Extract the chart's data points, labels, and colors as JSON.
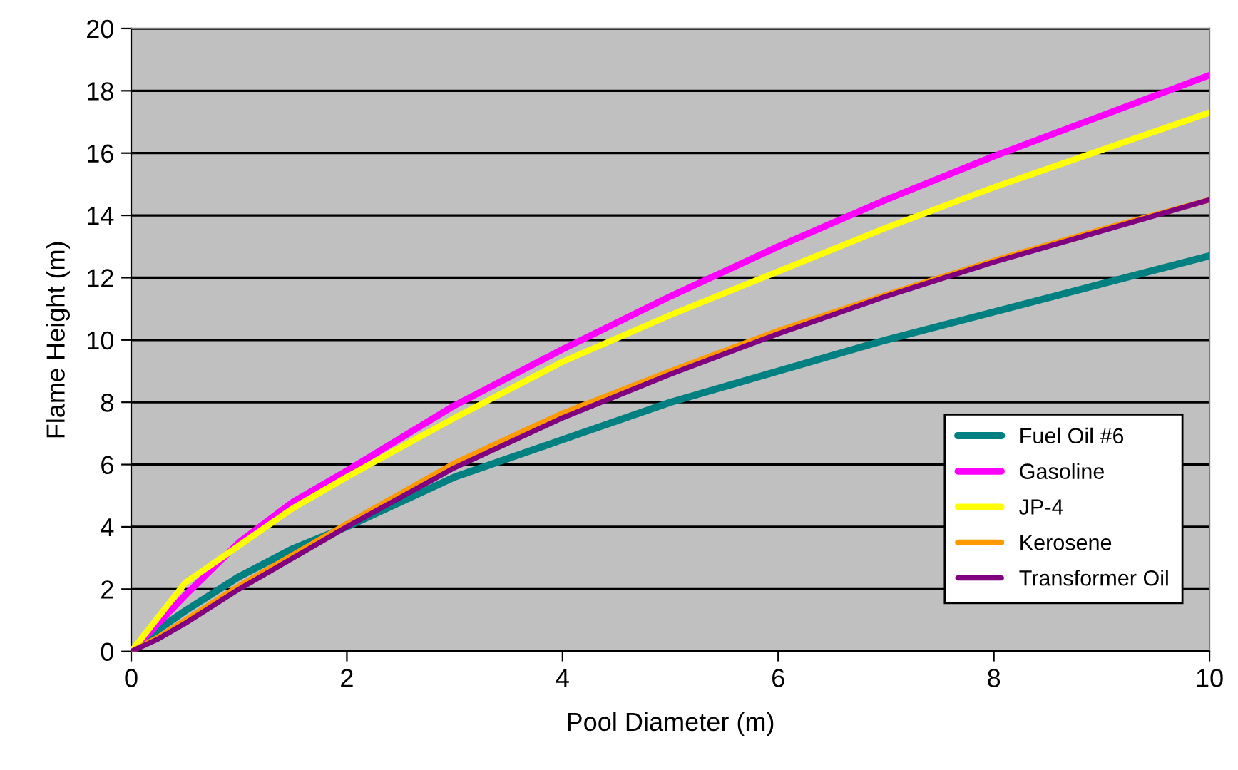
{
  "chart_data": {
    "type": "line",
    "xlabel": "Pool Diameter (m)",
    "ylabel": "Flame Height (m)",
    "xlim": [
      0,
      10
    ],
    "xticks": [
      0,
      2,
      4,
      6,
      8,
      10
    ],
    "ylim": [
      0,
      20
    ],
    "yticks": [
      0,
      2,
      4,
      6,
      8,
      10,
      12,
      14,
      16,
      18,
      20
    ],
    "grid": "y",
    "legend": "bottom right",
    "line_style": "solid",
    "marker": "none",
    "x": [
      0,
      0.25,
      0.5,
      1,
      1.5,
      2,
      3,
      4,
      5,
      6,
      7,
      8,
      9,
      10
    ],
    "series": [
      {
        "name": "Fuel Oil #6",
        "color": "#008080",
        "values": [
          0,
          0.7,
          1.3,
          2.4,
          3.3,
          4.0,
          5.6,
          6.8,
          8.0,
          9.0,
          10.0,
          10.9,
          11.8,
          12.7
        ]
      },
      {
        "name": "Gasoline",
        "color": "#ff00ff",
        "values": [
          0,
          0.9,
          1.8,
          3.5,
          4.8,
          5.8,
          7.9,
          9.7,
          11.4,
          13.0,
          14.5,
          15.9,
          17.2,
          18.5
        ]
      },
      {
        "name": "JP-4",
        "color": "#ffff00",
        "values": [
          0,
          1.1,
          2.2,
          3.4,
          4.6,
          5.6,
          7.5,
          9.3,
          10.8,
          12.2,
          13.6,
          14.9,
          16.1,
          17.3
        ]
      },
      {
        "name": "Kerosene",
        "color": "#ff9900",
        "values": [
          0,
          0.45,
          1.0,
          2.1,
          3.1,
          4.1,
          6.05,
          7.65,
          9.0,
          10.3,
          11.45,
          12.55,
          13.55,
          14.5
        ]
      },
      {
        "name": "Transformer Oil",
        "color": "#800080",
        "values": [
          0,
          0.4,
          0.9,
          2.0,
          3.0,
          4.0,
          5.9,
          7.5,
          8.9,
          10.2,
          11.4,
          12.5,
          13.5,
          14.5
        ]
      }
    ]
  }
}
